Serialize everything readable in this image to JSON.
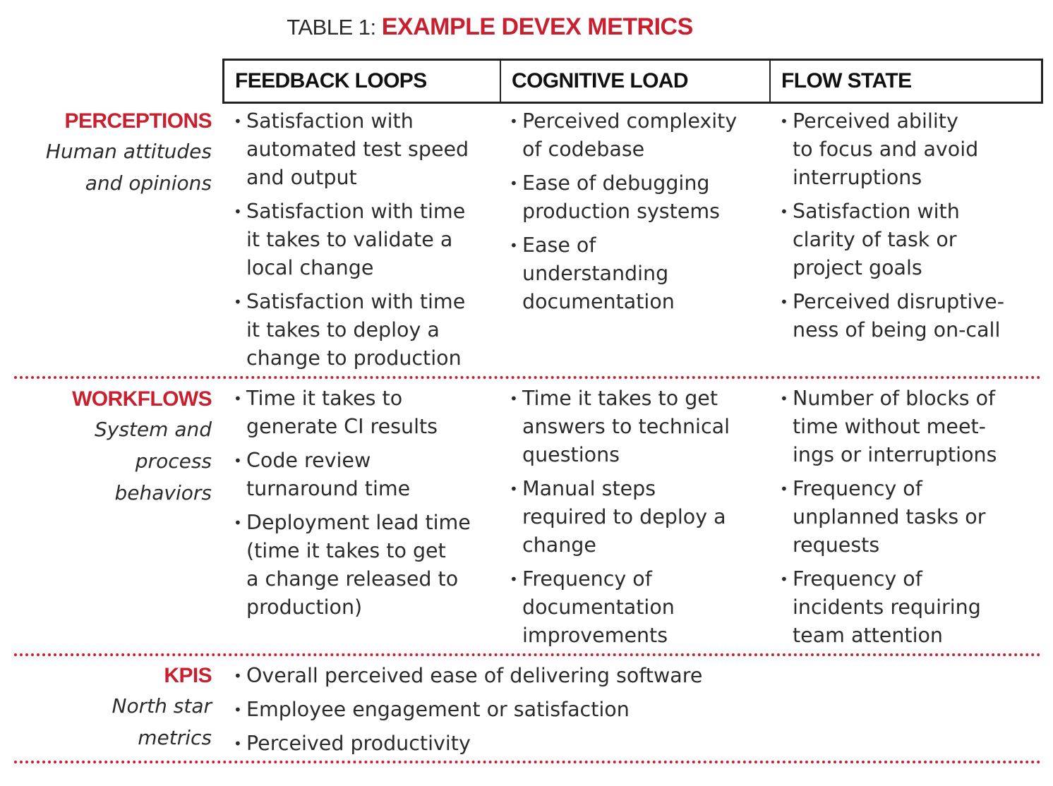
{
  "title": {
    "prefix": "TABLE 1: ",
    "main": "EXAMPLE DEVEX METRICS"
  },
  "columns": [
    "FEEDBACK LOOPS",
    "COGNITIVE LOAD",
    "FLOW STATE"
  ],
  "rows": {
    "perceptions": {
      "name": "PERCEPTIONS",
      "desc": [
        "Human attitudes",
        "and opinions"
      ],
      "cells": [
        [
          "Satisfaction with\nautomated test  speed\nand output",
          "Satisfaction with time\nit takes to validate a\nlocal change",
          "Satisfaction with time\nit takes to deploy a\nchange to production"
        ],
        [
          "Perceived complexity\nof codebase",
          "Ease of debugging\nproduction systems",
          "Ease of\nunderstanding\ndocumentation"
        ],
        [
          "Perceived ability\nto focus and avoid\ninterruptions",
          "Satisfaction with\nclarity of task or\nproject goals",
          "Perceived disruptive-\nness of being on-call"
        ]
      ]
    },
    "workflows": {
      "name": "WORKFLOWS",
      "desc": [
        "System and",
        "process",
        "behaviors"
      ],
      "cells": [
        [
          "Time it takes to\ngenerate CI results",
          "Code review\nturnaround time",
          "Deployment lead time\n(time it takes to get\na change released to\nproduction)"
        ],
        [
          "Time it takes to get\nanswers to technical\nquestions",
          "Manual steps\nrequired to deploy a\nchange",
          "Frequency of\ndocumentation\nimprovements"
        ],
        [
          "Number of blocks of\ntime without meet-\nings or interruptions",
          "Frequency of\nunplanned tasks or\nrequests",
          "Frequency of\nincidents requiring\nteam attention"
        ]
      ]
    },
    "kpis": {
      "name": "KPIS",
      "desc": [
        "North star",
        "metrics"
      ],
      "items": [
        "Overall perceived ease of delivering software",
        "Employee engagement or satisfaction",
        "Perceived productivity"
      ]
    }
  },
  "colors": {
    "accent": "#c8202f",
    "text": "#2b2b2b"
  }
}
